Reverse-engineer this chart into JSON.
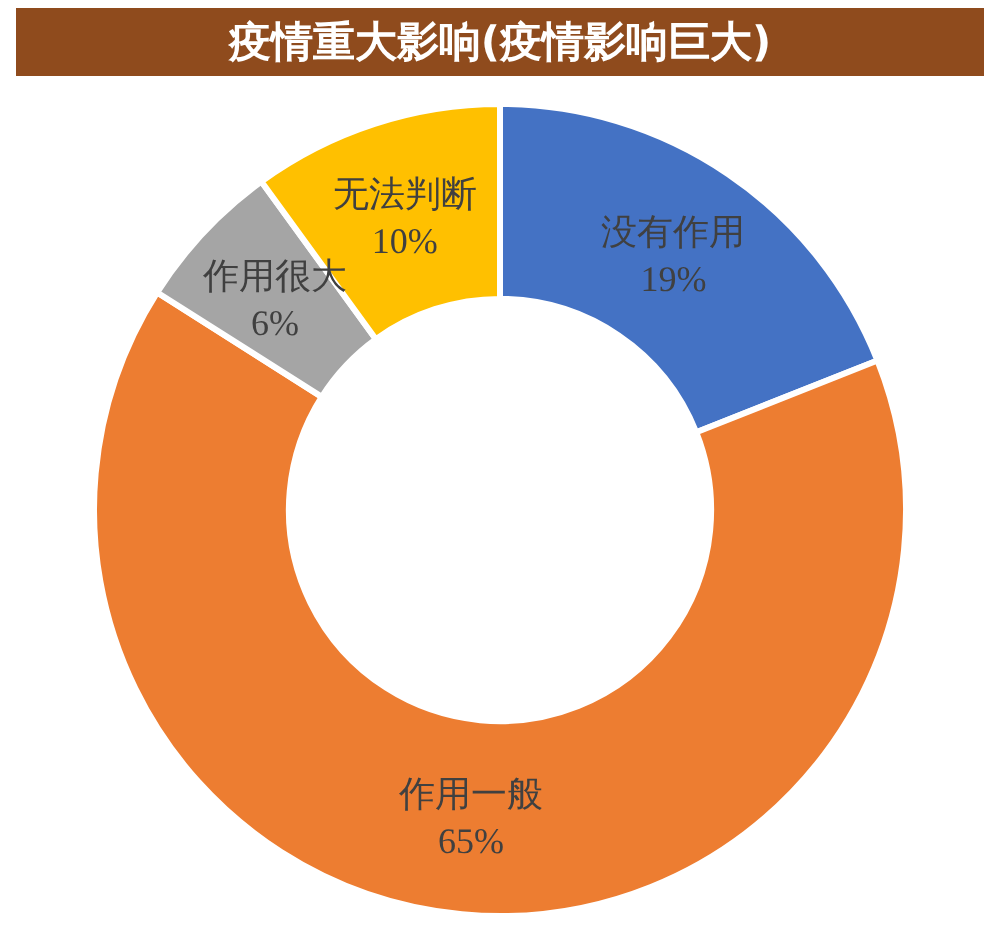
{
  "chart_data": {
    "type": "donut",
    "title": "疫情重大影响(疫情影响巨大)",
    "categories": [
      "没有作用",
      "作用一般",
      "作用很大",
      "无法判断"
    ],
    "values": [
      19,
      65,
      6,
      10
    ],
    "colors": [
      "#4472c4",
      "#ed7d31",
      "#a5a5a5",
      "#ffc000"
    ],
    "value_labels": [
      "19%",
      "65%",
      "6%",
      "10%"
    ]
  }
}
